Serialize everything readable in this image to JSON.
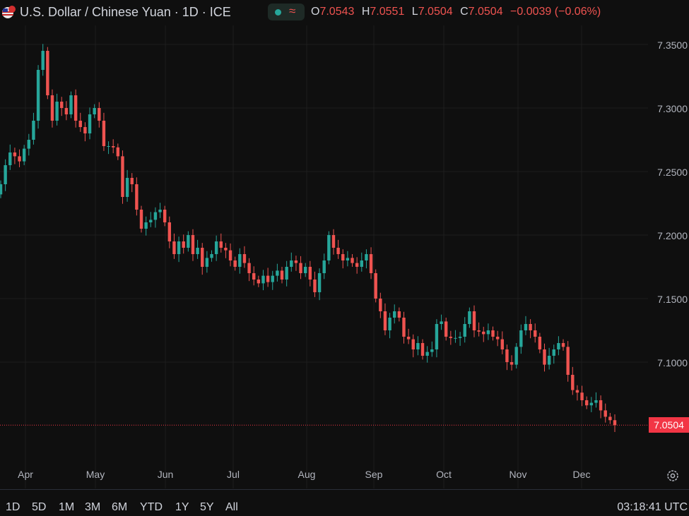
{
  "header": {
    "title": "U.S. Dollar / Chinese Yuan · 1D · ICE",
    "ohlc": [
      {
        "key": "O",
        "value": "7.0543"
      },
      {
        "key": "H",
        "value": "7.0551"
      },
      {
        "key": "L",
        "value": "7.0504"
      },
      {
        "key": "C",
        "value": "7.0504"
      }
    ],
    "change": "−0.0039 (−0.06%)",
    "change_color": "#ef5350"
  },
  "axis": {
    "y_labels": [
      "7.3500",
      "7.3000",
      "7.2500",
      "7.2000",
      "7.1500",
      "7.1000"
    ],
    "last_price": "7.0504",
    "last_price_color": "#f23645",
    "x_labels": [
      "Apr",
      "May",
      "Jun",
      "Jul",
      "Aug",
      "Sep",
      "Oct",
      "Nov",
      "Dec"
    ]
  },
  "bottombar": {
    "ranges": [
      "1D",
      "5D",
      "1M",
      "3M",
      "6M",
      "YTD",
      "1Y",
      "5Y",
      "All"
    ],
    "clock": "03:18:41 UTC"
  },
  "colors": {
    "up": "#26a69a",
    "down": "#ef5350",
    "background": "#0f0f0f",
    "grid": "#1e1e1e"
  },
  "chart_data": {
    "type": "candlestick",
    "title": "U.S. Dollar / Chinese Yuan · 1D · ICE",
    "xlabel": "",
    "ylabel": "",
    "ylim": [
      7.02,
      7.37
    ],
    "grid": true,
    "x_ticks": [
      "Apr",
      "May",
      "Jun",
      "Jul",
      "Aug",
      "Sep",
      "Oct",
      "Nov",
      "Dec"
    ],
    "y_ticks": [
      7.35,
      7.3,
      7.25,
      7.2,
      7.15,
      7.1
    ],
    "last_price": 7.0504,
    "series": [
      {
        "name": "USD/CNY",
        "approx_closes": [
          7.24,
          7.255,
          7.265,
          7.262,
          7.258,
          7.268,
          7.275,
          7.29,
          7.33,
          7.345,
          7.31,
          7.29,
          7.305,
          7.3,
          7.295,
          7.31,
          7.29,
          7.285,
          7.28,
          7.295,
          7.3,
          7.29,
          7.27,
          7.27,
          7.269,
          7.262,
          7.23,
          7.245,
          7.24,
          7.22,
          7.205,
          7.21,
          7.212,
          7.218,
          7.22,
          7.21,
          7.195,
          7.185,
          7.195,
          7.19,
          7.2,
          7.185,
          7.19,
          7.175,
          7.182,
          7.185,
          7.195,
          7.19,
          7.188,
          7.18,
          7.175,
          7.185,
          7.178,
          7.17,
          7.165,
          7.162,
          7.168,
          7.163,
          7.168,
          7.172,
          7.165,
          7.175,
          7.18,
          7.178,
          7.17,
          7.175,
          7.165,
          7.155,
          7.17,
          7.18,
          7.2,
          7.19,
          7.185,
          7.18,
          7.182,
          7.178,
          7.175,
          7.18,
          7.185,
          7.17,
          7.15,
          7.14,
          7.125,
          7.135,
          7.14,
          7.135,
          7.12,
          7.118,
          7.11,
          7.115,
          7.105,
          7.108,
          7.11,
          7.13,
          7.132,
          7.12,
          7.119,
          7.119,
          7.12,
          7.13,
          7.14,
          7.125,
          7.124,
          7.122,
          7.125,
          7.12,
          7.118,
          7.11,
          7.1,
          7.098,
          7.112,
          7.125,
          7.13,
          7.125,
          7.12,
          7.11,
          7.098,
          7.105,
          7.11,
          7.115,
          7.112,
          7.09,
          7.078,
          7.076,
          7.07,
          7.066,
          7.068,
          7.07,
          7.062,
          7.057,
          7.0543,
          7.0504
        ]
      }
    ]
  }
}
